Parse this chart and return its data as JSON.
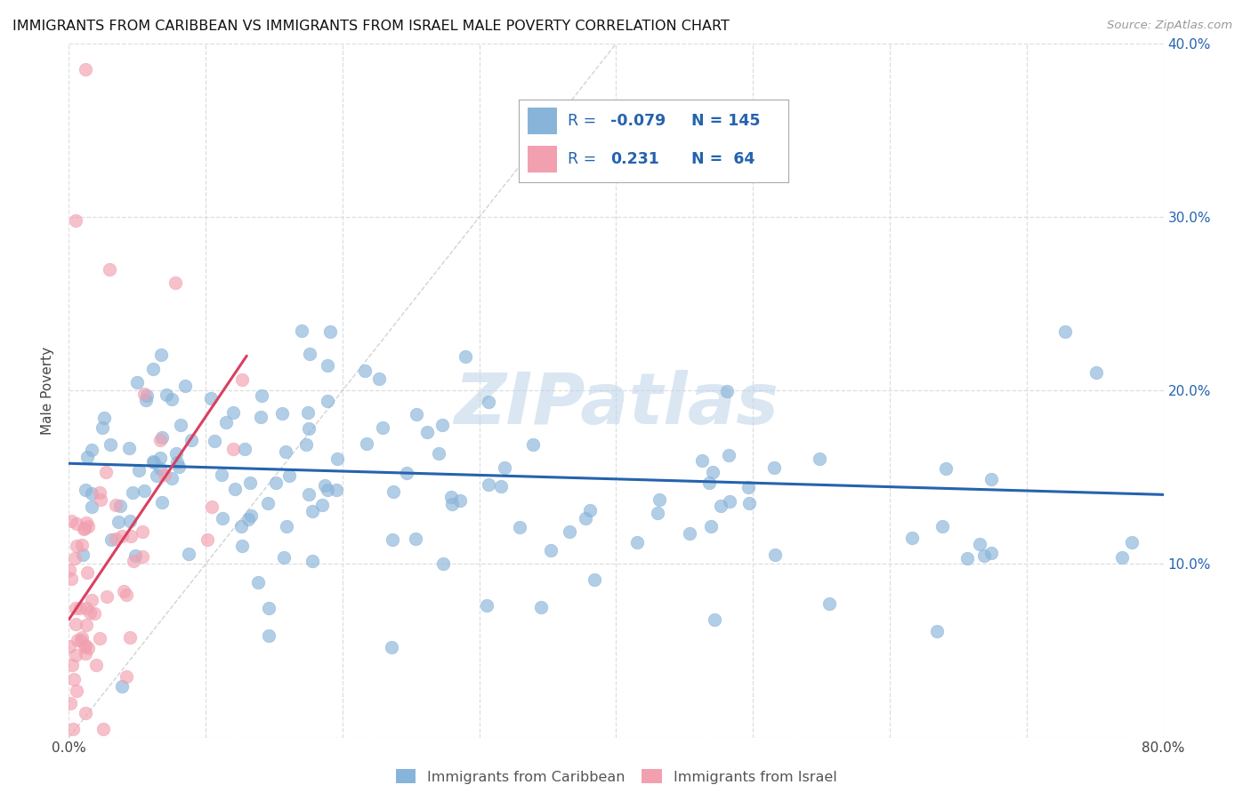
{
  "title": "IMMIGRANTS FROM CARIBBEAN VS IMMIGRANTS FROM ISRAEL MALE POVERTY CORRELATION CHART",
  "source": "Source: ZipAtlas.com",
  "ylabel": "Male Poverty",
  "xlim": [
    0,
    0.8
  ],
  "ylim": [
    0,
    0.4
  ],
  "blue_color": "#89B4D9",
  "pink_color": "#F2A0B0",
  "blue_line_color": "#2563AE",
  "pink_line_color": "#D94060",
  "diagonal_color": "#C8C8C8",
  "watermark": "ZIPatlas",
  "background_color": "#FFFFFF",
  "grid_color": "#DEDEDE",
  "seed": 99,
  "n_caribbean": 145,
  "n_israel": 64
}
